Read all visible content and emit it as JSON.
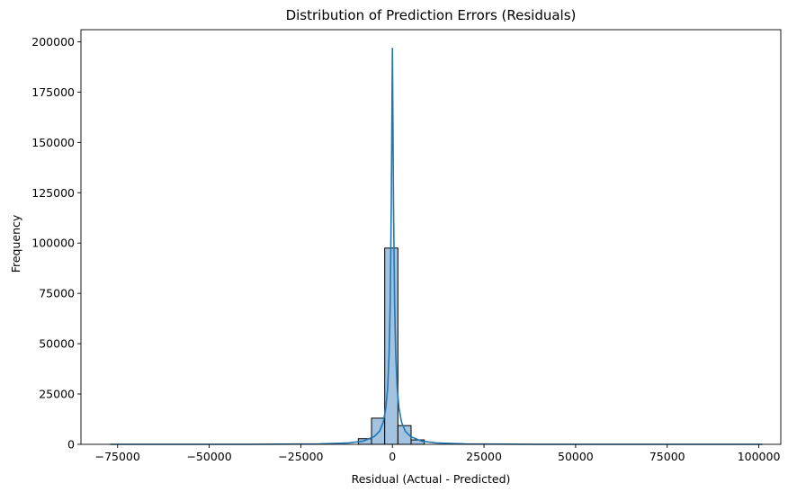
{
  "chart_data": {
    "type": "bar",
    "title": "Distribution of Prediction Errors (Residuals)",
    "xlabel": "Residual (Actual - Predicted)",
    "ylabel": "Frequency",
    "xlim": [
      -85000,
      106000
    ],
    "ylim": [
      0,
      206000
    ],
    "x_ticks": [
      -75000,
      -50000,
      -25000,
      0,
      25000,
      50000,
      75000,
      100000
    ],
    "x_tick_labels": [
      "−75000",
      "−50000",
      "−25000",
      "0",
      "25000",
      "50000",
      "75000",
      "100000"
    ],
    "y_ticks": [
      0,
      25000,
      50000,
      75000,
      100000,
      125000,
      150000,
      175000,
      200000
    ],
    "y_tick_labels": [
      "0",
      "25000",
      "50000",
      "75000",
      "100000",
      "125000",
      "150000",
      "175000",
      "200000"
    ],
    "grid": false,
    "histogram": {
      "bin_edges": [
        -9300,
        -5700,
        -2100,
        1500,
        5100,
        8700
      ],
      "values": [
        2800,
        13000,
        97500,
        9300,
        2200
      ],
      "bar_color": "#a3c3e0",
      "edge_color": "#000000"
    },
    "kde": {
      "x": [
        -77000,
        -60000,
        -40000,
        -20000,
        -12000,
        -8000,
        -5000,
        -3500,
        -2500,
        -1800,
        -1300,
        -900,
        -600,
        -300,
        -150,
        0,
        150,
        300,
        600,
        900,
        1300,
        1800,
        2500,
        3500,
        5000,
        8000,
        12000,
        20000,
        40000,
        60000,
        80000,
        101000
      ],
      "y": [
        0,
        0,
        0,
        200,
        700,
        1600,
        3800,
        6500,
        11000,
        18000,
        28000,
        45000,
        70000,
        120000,
        160000,
        197000,
        160000,
        120000,
        70000,
        45000,
        28000,
        18000,
        11000,
        6500,
        3800,
        1600,
        700,
        200,
        0,
        0,
        0,
        0
      ],
      "color": "#1f77b4"
    }
  }
}
